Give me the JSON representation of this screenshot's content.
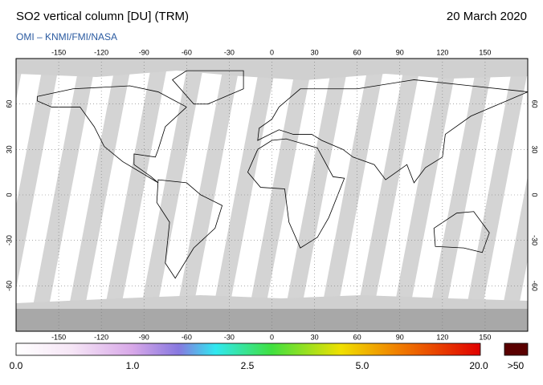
{
  "header": {
    "title": "SO2 vertical column [DU] (TRM)",
    "date": "20 March 2020",
    "source": "OMI  –  KNMI/FMI/NASA"
  },
  "map": {
    "lon_ticks": [
      -150,
      -120,
      -90,
      -60,
      -30,
      0,
      30,
      60,
      90,
      120,
      150
    ],
    "lat_ticks": [
      60,
      30,
      0,
      -30,
      -60
    ]
  },
  "colorbar": {
    "labels": [
      "0.0",
      "1.0",
      "2.5",
      "5.0",
      "20.0"
    ],
    "overflow_label": ">50"
  }
}
